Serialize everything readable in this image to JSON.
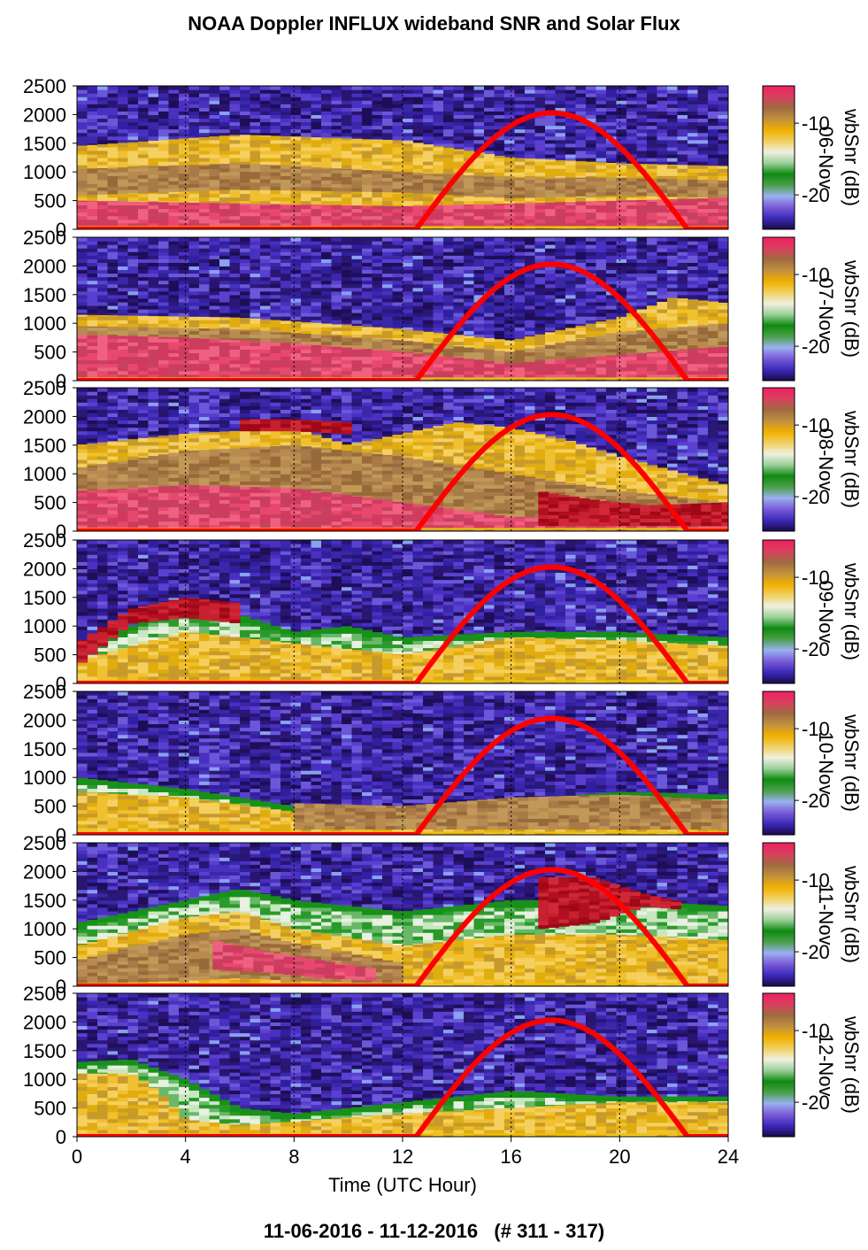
{
  "page": {
    "title": "NOAA Doppler INFLUX wideband SNR and Solar Flux",
    "footer": "11-06-2016 - 11-12-2016   (# 311 - 317)"
  },
  "colors": {
    "solar_flux_line": "#ff0000",
    "colormap_low_to_high": [
      "#1a0a4a",
      "#3a2ab8",
      "#7a5ad8",
      "#9ab0f0",
      "#4aa04a",
      "#108a10",
      "#9ad09a",
      "#f0f0e0",
      "#f0d060",
      "#f0b000",
      "#c09040",
      "#a06a40",
      "#d84060",
      "#f02060"
    ]
  },
  "chart_data": {
    "type": "heatmap",
    "title": "NOAA Doppler INFLUX wideband SNR and Solar Flux",
    "xlabel": "Time (UTC Hour)",
    "xlim": [
      0,
      24
    ],
    "xticks": [
      0,
      4,
      8,
      12,
      16,
      20,
      24
    ],
    "ylim": [
      0,
      2500
    ],
    "yticks": [
      0,
      500,
      1000,
      1500,
      2000,
      2500
    ],
    "colorbar": {
      "label": "wbSnr (dB)",
      "ticks": [
        "-10",
        "-20"
      ]
    },
    "grid": "dotted vertical lines at 4 h intervals",
    "overlay": {
      "name": "Solar Flux",
      "shape": "half-sine",
      "start_hour": 12.5,
      "peak_hour": 17.5,
      "end_hour": 22.5,
      "peak_value": 2030
    },
    "panels": [
      {
        "label": "06-Nov",
        "bands": [
          {
            "x": [
              0,
              6,
              12,
              16,
              20,
              24
            ],
            "top": [
              1450,
              1650,
              1550,
              1250,
              1150,
              1100
            ],
            "bottom": [
              0,
              0,
              0,
              0,
              0,
              0
            ],
            "cat": "gold"
          },
          {
            "x": [
              0,
              6,
              12,
              16,
              20,
              24
            ],
            "top": [
              1050,
              1150,
              1000,
              900,
              900,
              850
            ],
            "bottom": [
              600,
              700,
              650,
              550,
              600,
              550
            ],
            "cat": "brown"
          },
          {
            "x": [
              0,
              6,
              12,
              16,
              20,
              24
            ],
            "top": [
              500,
              450,
              400,
              450,
              500,
              550
            ],
            "bottom": [
              50,
              50,
              50,
              50,
              50,
              50
            ],
            "cat": "pink"
          }
        ]
      },
      {
        "label": "07-Nov",
        "bands": [
          {
            "x": [
              0,
              6,
              12,
              16,
              20,
              22,
              24
            ],
            "top": [
              1150,
              1100,
              900,
              700,
              1100,
              1450,
              1350
            ],
            "bottom": [
              0,
              0,
              0,
              0,
              0,
              0,
              0
            ],
            "cat": "gold"
          },
          {
            "x": [
              0,
              6,
              12,
              16,
              20,
              24
            ],
            "top": [
              950,
              900,
              700,
              500,
              850,
              1000
            ],
            "bottom": [
              0,
              0,
              0,
              0,
              0,
              0
            ],
            "cat": "brown"
          },
          {
            "x": [
              0,
              4,
              8,
              12,
              16,
              20,
              24
            ],
            "top": [
              800,
              750,
              650,
              500,
              300,
              450,
              600
            ],
            "bottom": [
              50,
              50,
              50,
              50,
              50,
              50,
              50
            ],
            "cat": "pink"
          }
        ]
      },
      {
        "label": "08-Nov",
        "bands": [
          {
            "x": [
              0,
              4,
              8,
              10,
              12,
              14,
              16,
              18,
              20,
              24
            ],
            "top": [
              1500,
              1700,
              1800,
              1500,
              1700,
              1900,
              1800,
              1600,
              1300,
              800
            ],
            "bottom": [
              0,
              0,
              0,
              0,
              0,
              0,
              0,
              0,
              0,
              0
            ],
            "cat": "gold"
          },
          {
            "x": [
              0,
              4,
              8,
              12,
              16,
              20,
              24
            ],
            "top": [
              1100,
              1400,
              1500,
              1300,
              1000,
              700,
              500
            ],
            "bottom": [
              0,
              0,
              0,
              0,
              0,
              0,
              0
            ],
            "cat": "brown"
          },
          {
            "x": [
              0,
              4,
              8,
              12,
              16,
              20,
              24
            ],
            "top": [
              700,
              800,
              750,
              500,
              250,
              200,
              150
            ],
            "bottom": [
              50,
              50,
              50,
              50,
              50,
              50,
              50
            ],
            "cat": "pink"
          },
          {
            "x": [
              6,
              8,
              10
            ],
            "top": [
              1950,
              1950,
              1900
            ],
            "bottom": [
              1750,
              1750,
              1700
            ],
            "cat": "red"
          },
          {
            "x": [
              17,
              19,
              21,
              24
            ],
            "top": [
              700,
              550,
              450,
              500
            ],
            "bottom": [
              100,
              100,
              100,
              100
            ],
            "cat": "red"
          }
        ]
      },
      {
        "label": "09-Nov",
        "bands": [
          {
            "x": [
              0,
              4,
              6,
              8,
              10,
              12,
              16,
              20,
              24
            ],
            "top": [
              600,
              1400,
              1200,
              900,
              1000,
              800,
              900,
              900,
              800
            ],
            "bottom": [
              0,
              0,
              0,
              0,
              0,
              0,
              0,
              0,
              0
            ],
            "cat": "green"
          },
          {
            "x": [
              0,
              4,
              8,
              12,
              16,
              20,
              24
            ],
            "top": [
              400,
              900,
              700,
              500,
              800,
              750,
              650
            ],
            "bottom": [
              0,
              0,
              0,
              0,
              0,
              0,
              0
            ],
            "cat": "gold"
          },
          {
            "x": [
              0,
              2,
              4,
              6
            ],
            "top": [
              700,
              1300,
              1500,
              1400
            ],
            "bottom": [
              300,
              1050,
              1150,
              1050
            ],
            "cat": "red"
          }
        ]
      },
      {
        "label": "10-Nov",
        "bands": [
          {
            "x": [
              0,
              4,
              8,
              12,
              16,
              20,
              24
            ],
            "top": [
              1000,
              800,
              500,
              450,
              600,
              750,
              700
            ],
            "bottom": [
              0,
              0,
              0,
              0,
              0,
              0,
              0
            ],
            "cat": "green"
          },
          {
            "x": [
              0,
              4,
              8,
              12,
              16,
              20,
              24
            ],
            "top": [
              750,
              650,
              400,
              350,
              450,
              600,
              550
            ],
            "bottom": [
              0,
              0,
              0,
              0,
              0,
              0,
              0
            ],
            "cat": "gold"
          },
          {
            "x": [
              8,
              12,
              16,
              20,
              24
            ],
            "top": [
              550,
              500,
              650,
              700,
              600
            ],
            "bottom": [
              100,
              100,
              100,
              100,
              100
            ],
            "cat": "brown"
          }
        ]
      },
      {
        "label": "11-Nov",
        "bands": [
          {
            "x": [
              0,
              4,
              6,
              8,
              12,
              16,
              20,
              24
            ],
            "top": [
              1100,
              1500,
              1700,
              1500,
              1300,
              1500,
              1500,
              1400
            ],
            "bottom": [
              0,
              0,
              0,
              0,
              0,
              0,
              0,
              0
            ],
            "cat": "green"
          },
          {
            "x": [
              0,
              4,
              6,
              8,
              12,
              16,
              20,
              24
            ],
            "top": [
              700,
              1200,
              1300,
              1000,
              700,
              900,
              900,
              800
            ],
            "bottom": [
              0,
              0,
              0,
              0,
              0,
              0,
              0,
              0
            ],
            "cat": "gold"
          },
          {
            "x": [
              0,
              4,
              6,
              8,
              12
            ],
            "top": [
              450,
              900,
              1000,
              750,
              400
            ],
            "bottom": [
              50,
              100,
              150,
              100,
              50
            ],
            "cat": "brown"
          },
          {
            "x": [
              5,
              7,
              9,
              11
            ],
            "top": [
              800,
              600,
              450,
              300
            ],
            "bottom": [
              300,
              250,
              150,
              100
            ],
            "cat": "pink"
          },
          {
            "x": [
              17,
              19,
              21,
              22
            ],
            "top": [
              1900,
              1900,
              1600,
              1500
            ],
            "bottom": [
              1000,
              1100,
              1400,
              1350
            ],
            "cat": "red"
          }
        ]
      },
      {
        "label": "12-Nov",
        "bands": [
          {
            "x": [
              0,
              2,
              4,
              6,
              8,
              12,
              16,
              20,
              24
            ],
            "top": [
              1300,
              1350,
              1000,
              500,
              400,
              600,
              800,
              700,
              700
            ],
            "bottom": [
              0,
              0,
              0,
              0,
              0,
              0,
              0,
              0,
              0
            ],
            "cat": "green"
          },
          {
            "x": [
              0,
              2,
              3,
              4,
              6,
              12,
              16,
              20,
              24
            ],
            "top": [
              1100,
              1100,
              800,
              300,
              200,
              400,
              500,
              600,
              600
            ],
            "bottom": [
              0,
              0,
              0,
              0,
              0,
              0,
              0,
              0,
              0
            ],
            "cat": "gold"
          }
        ]
      }
    ]
  }
}
